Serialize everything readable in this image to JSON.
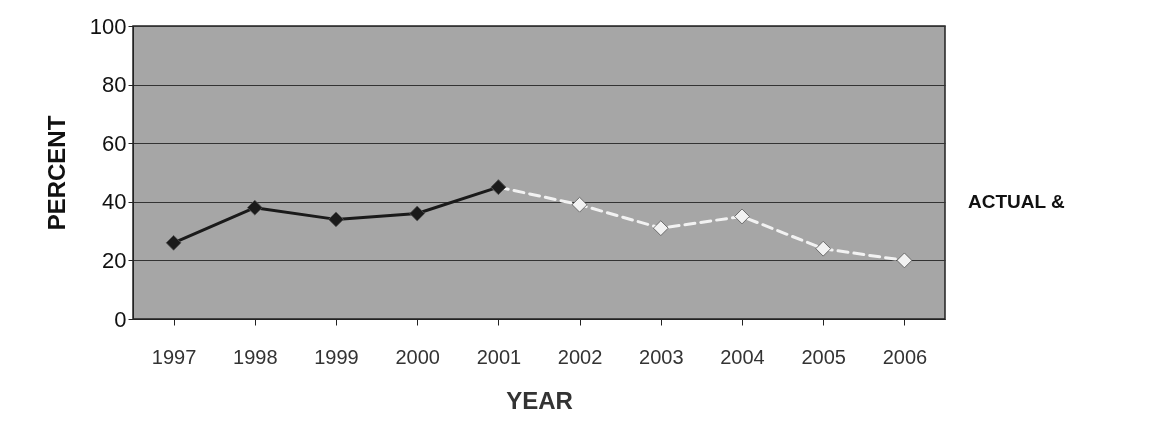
{
  "chart_data": {
    "type": "line",
    "xlabel": "YEAR",
    "ylabel": "PERCENT",
    "categories": [
      "1997",
      "1998",
      "1999",
      "2000",
      "2001",
      "2002",
      "2003",
      "2004",
      "2005",
      "2006"
    ],
    "series": [
      {
        "color": "#1a1a1a",
        "line_style": "solid",
        "values": [
          26,
          38,
          34,
          36,
          45,
          null,
          null,
          null,
          null,
          null
        ]
      },
      {
        "color": "#f2f2f2",
        "line_style": "dashed",
        "values": [
          null,
          null,
          null,
          null,
          45,
          39,
          31,
          35,
          24,
          20
        ]
      }
    ],
    "ylim": [
      0,
      100
    ],
    "yticks": [
      0,
      20,
      40,
      60,
      80,
      100
    ],
    "grid": "y",
    "marker": "diamond",
    "annotations": [
      "ACTUAL &"
    ]
  }
}
